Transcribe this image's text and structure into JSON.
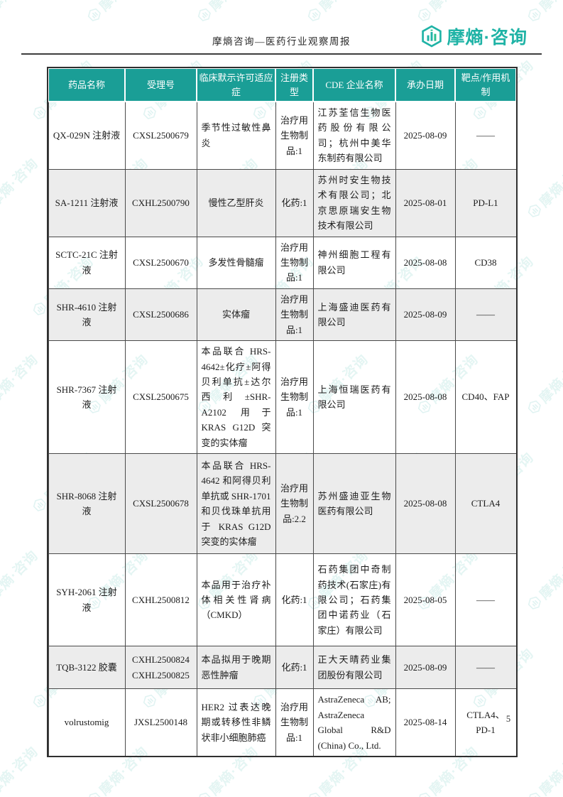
{
  "header": {
    "title": "摩熵咨询—医药行业观察周报",
    "logo_text": "摩熵·咨询"
  },
  "watermark_text": "摩熵·咨询",
  "footer": {
    "page_number": "5"
  },
  "colors": {
    "header_bg": "#1A9E96",
    "brand_teal": "#1FB3A6",
    "row_alt": "#ECECEC",
    "border": "#2F2F2F"
  },
  "table": {
    "columns": [
      "药品名称",
      "受理号",
      "临床默示许可适应症",
      "注册类型",
      "CDE 企业名称",
      "承办日期",
      "靶点/作用机制"
    ],
    "rows": [
      {
        "name": "QX-029N 注射液",
        "acceptance_no": "CXSL2500679",
        "indication": "季节性过敏性鼻炎",
        "reg_type": "治疗用生物制品:1",
        "company": "江苏荃信生物医药股份有限公司；杭州中美华东制药有限公司",
        "date": "2025-08-09",
        "target": "——"
      },
      {
        "name": "SA-1211 注射液",
        "acceptance_no": "CXHL2500790",
        "indication": "慢性乙型肝炎",
        "reg_type": "化药:1",
        "company": "苏州时安生物技术有限公司；北京思原瑞安生物技术有限公司",
        "date": "2025-08-01",
        "target": "PD-L1"
      },
      {
        "name": "SCTC-21C 注射液",
        "acceptance_no": "CXSL2500670",
        "indication": "多发性骨髓瘤",
        "reg_type": "治疗用生物制品:1",
        "company": "神州细胞工程有限公司",
        "date": "2025-08-08",
        "target": "CD38"
      },
      {
        "name": "SHR-4610 注射液",
        "acceptance_no": "CXSL2500686",
        "indication": "实体瘤",
        "reg_type": "治疗用生物制品:1",
        "company": "上海盛迪医药有限公司",
        "date": "2025-08-09",
        "target": "——"
      },
      {
        "name": "SHR-7367 注射液",
        "acceptance_no": "CXSL2500675",
        "indication": "本品联合 HRS-4642±化疗±阿得贝利单抗±达尔西利±SHR-A2102 用于 KRAS G12D 突变的实体瘤",
        "reg_type": "治疗用生物制品:1",
        "company": "上海恒瑞医药有限公司",
        "date": "2025-08-08",
        "target": "CD40、FAP"
      },
      {
        "name": "SHR-8068 注射液",
        "acceptance_no": "CXSL2500678",
        "indication": "本品联合 HRS-4642 和阿得贝利单抗或 SHR-1701 和贝伐珠单抗用于 KRAS G12D 突变的实体瘤",
        "reg_type": "治疗用生物制品:2.2",
        "company": "苏州盛迪亚生物医药有限公司",
        "date": "2025-08-08",
        "target": "CTLA4"
      },
      {
        "name": "SYH-2061 注射液",
        "acceptance_no": "CXHL2500812",
        "indication": "本品用于治疗补体相关性肾病（CMKD）",
        "reg_type": "化药:1",
        "company": "石药集团中奇制药技术(石家庄)有限公司；石药集团中诺药业（石家庄）有限公司",
        "date": "2025-08-05",
        "target": "——"
      },
      {
        "name": "TQB-3122 胶囊",
        "acceptance_no": "CXHL2500824\nCXHL2500825",
        "indication": "本品拟用于晚期恶性肿瘤",
        "reg_type": "化药:1",
        "company": "正大天晴药业集团股份有限公司",
        "date": "2025-08-09",
        "target": "——"
      },
      {
        "name": "volrustomig",
        "acceptance_no": "JXSL2500148",
        "indication": "HER2 过表达晚期或转移性非鳞状非小细胞肺癌",
        "reg_type": "治疗用生物制品:1",
        "company": "AstraZeneca AB; AstraZeneca Global R&D (China) Co., Ltd.",
        "date": "2025-08-14",
        "target": "CTLA4、PD-1"
      }
    ]
  }
}
